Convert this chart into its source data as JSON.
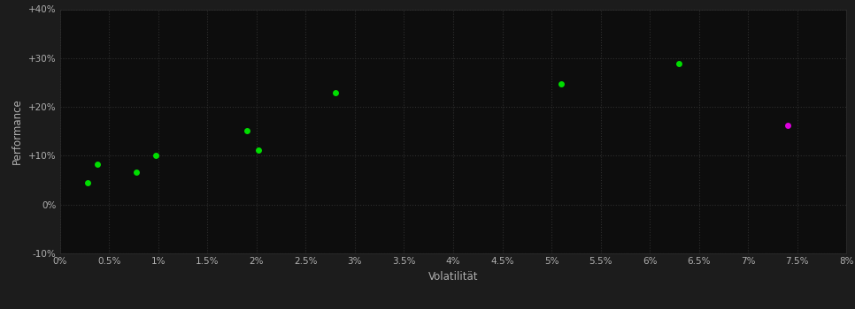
{
  "background_color": "#1c1c1c",
  "plot_bg_color": "#0d0d0d",
  "grid_color": "#2e2e2e",
  "text_color": "#b0b0b0",
  "xlabel": "Volatilität",
  "ylabel": "Performance",
  "xlim": [
    0,
    0.08
  ],
  "ylim": [
    -0.1,
    0.4
  ],
  "xticks": [
    0.0,
    0.005,
    0.01,
    0.015,
    0.02,
    0.025,
    0.03,
    0.035,
    0.04,
    0.045,
    0.05,
    0.055,
    0.06,
    0.065,
    0.07,
    0.075,
    0.08
  ],
  "yticks": [
    -0.1,
    0.0,
    0.1,
    0.2,
    0.3,
    0.4
  ],
  "ytick_labels": [
    "-10%",
    "0%",
    "+10%",
    "+20%",
    "+30%",
    "+40%"
  ],
  "xtick_labels": [
    "0%",
    "0.5%",
    "1%",
    "1.5%",
    "2%",
    "2.5%",
    "3%",
    "3.5%",
    "4%",
    "4.5%",
    "5%",
    "5.5%",
    "6%",
    "6.5%",
    "7%",
    "7.5%",
    "8%"
  ],
  "green_points": [
    [
      0.0028,
      0.045
    ],
    [
      0.0038,
      0.082
    ],
    [
      0.0078,
      0.067
    ],
    [
      0.0098,
      0.1
    ],
    [
      0.019,
      0.152
    ],
    [
      0.0202,
      0.112
    ],
    [
      0.028,
      0.23
    ],
    [
      0.051,
      0.248
    ],
    [
      0.063,
      0.288
    ]
  ],
  "magenta_points": [
    [
      0.074,
      0.163
    ]
  ],
  "point_color_green": "#00dd00",
  "point_color_magenta": "#dd00dd",
  "point_size": 25
}
